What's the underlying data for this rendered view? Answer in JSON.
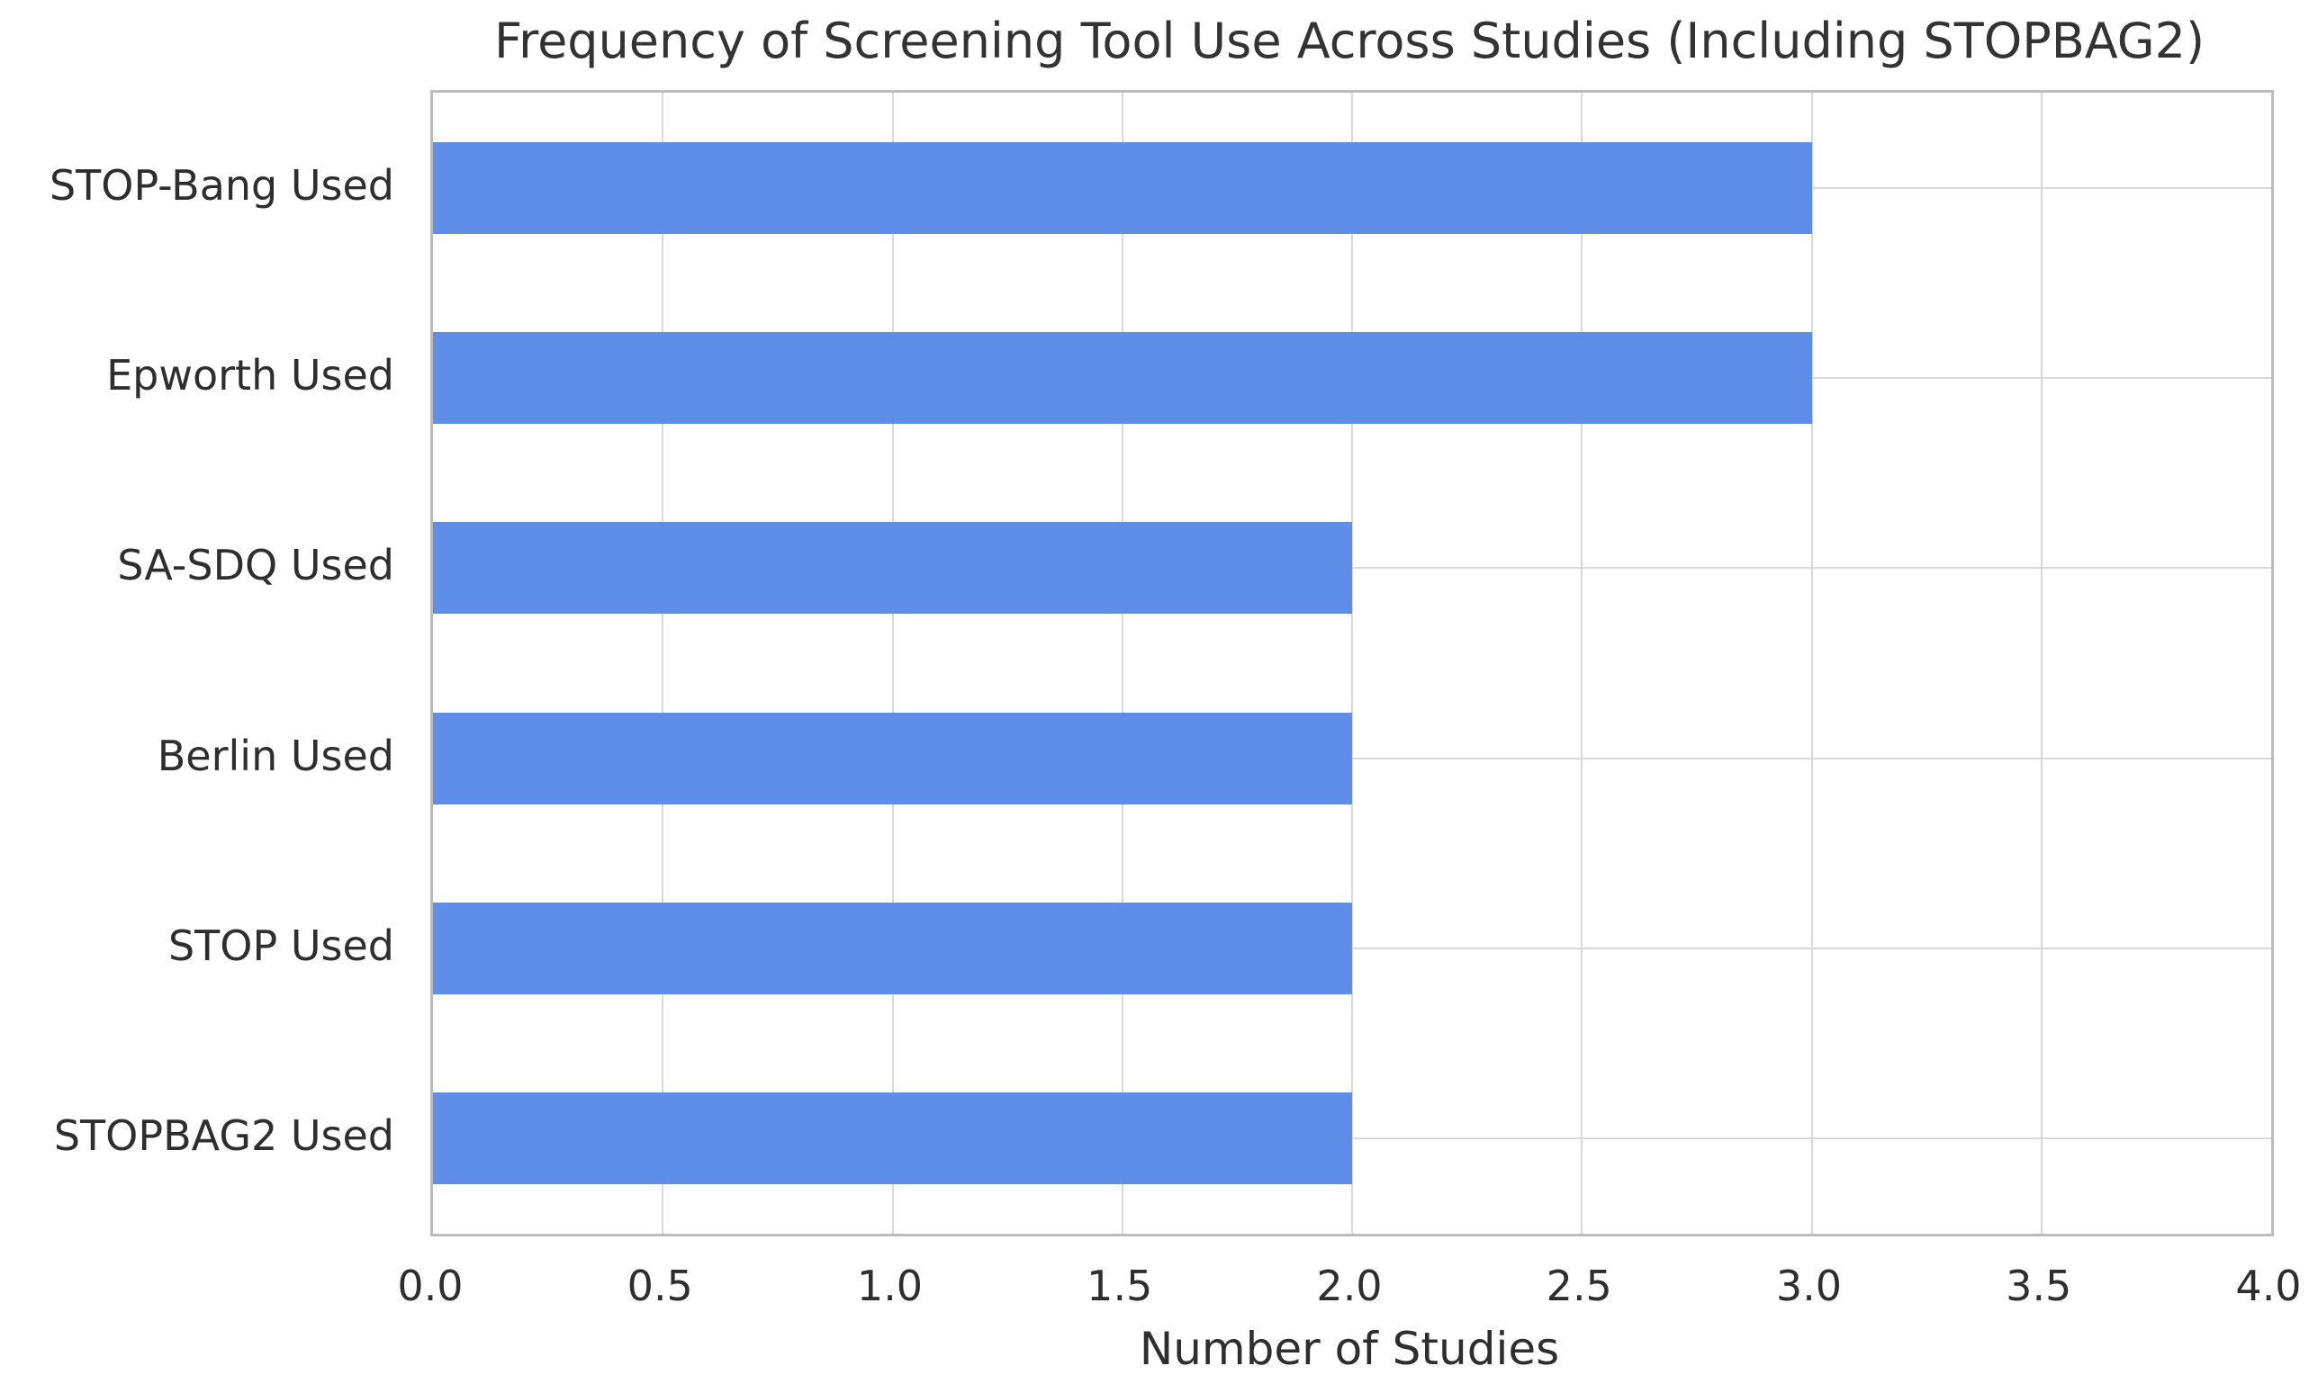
{
  "chart_data": {
    "type": "bar",
    "orientation": "horizontal",
    "title": "Frequency of Screening Tool Use Across Studies (Including STOPBAG2)",
    "xlabel": "Number of Studies",
    "ylabel": "",
    "categories": [
      "STOP-Bang Used",
      "Epworth Used",
      "SA-SDQ Used",
      "Berlin Used",
      "STOP Used",
      "STOPBAG2 Used"
    ],
    "values": [
      3,
      3,
      2,
      2,
      2,
      2
    ],
    "xlim": [
      0,
      4
    ],
    "xticks": [
      0.0,
      0.5,
      1.0,
      1.5,
      2.0,
      2.5,
      3.0,
      3.5,
      4.0
    ],
    "xtick_labels": [
      "0.0",
      "0.5",
      "1.0",
      "1.5",
      "2.0",
      "2.5",
      "3.0",
      "3.5",
      "4.0"
    ],
    "grid": true,
    "grid_axis": "both",
    "axisbelow": true,
    "legend": null,
    "bar_color": "#5F8EE9",
    "grid_color": "#d9d9d9",
    "spine_color": "#bcbcbc",
    "text_color": "#2e2e2e",
    "title_color": "#333333"
  }
}
